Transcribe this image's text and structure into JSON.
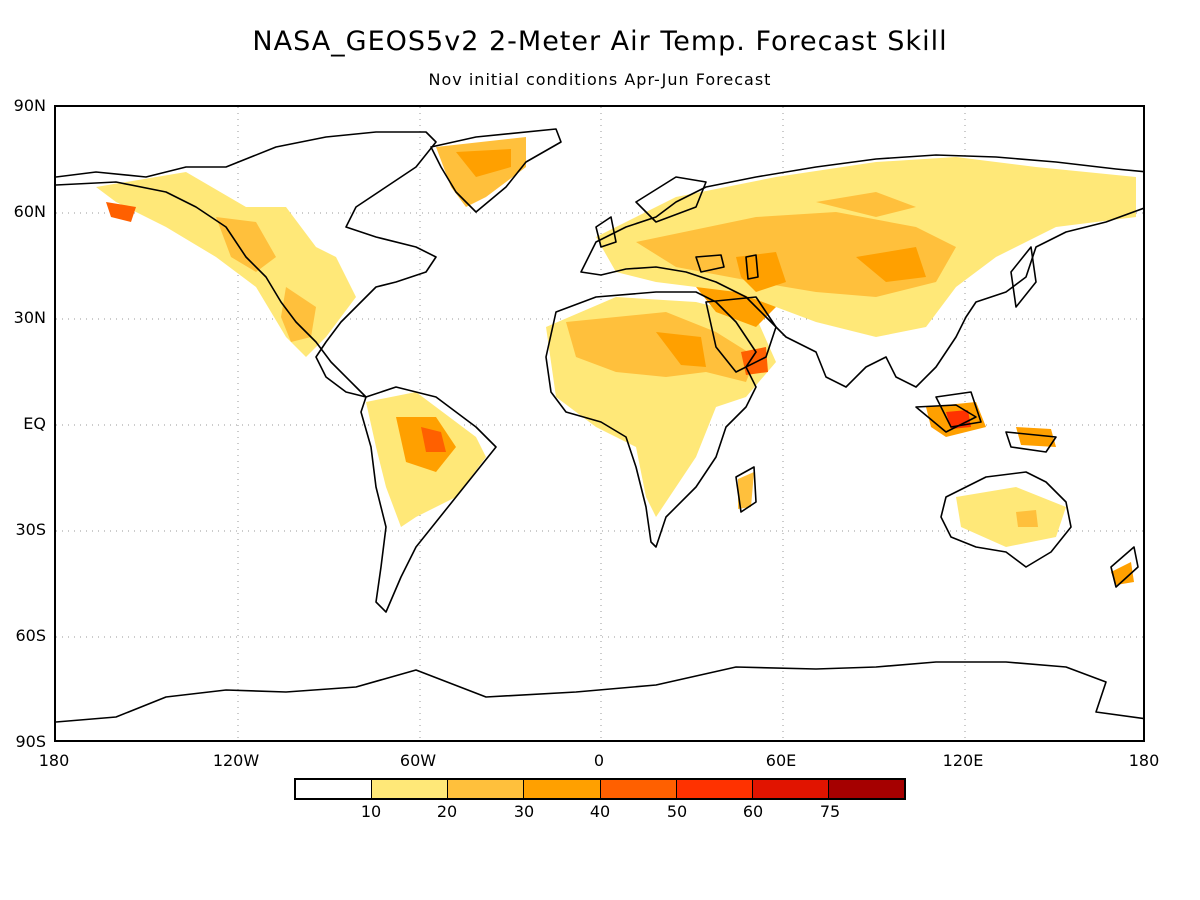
{
  "title": "NASA_GEOS5v2 2-Meter Air Temp. Forecast Skill",
  "subtitle": "Nov initial conditions   Apr-Jun Forecast",
  "lat_labels": [
    "90N",
    "60N",
    "30N",
    "EQ",
    "30S",
    "60S",
    "90S"
  ],
  "lon_labels": [
    "180",
    "120W",
    "60W",
    "0",
    "60E",
    "120E",
    "180"
  ],
  "colorbar": {
    "colors": [
      "#ffffff",
      "#ffe878",
      "#ffc03c",
      "#ffa000",
      "#ff6000",
      "#ff3200",
      "#e11400",
      "#a50000"
    ],
    "ticks": [
      "10",
      "20",
      "30",
      "40",
      "50",
      "60",
      "75"
    ]
  }
}
